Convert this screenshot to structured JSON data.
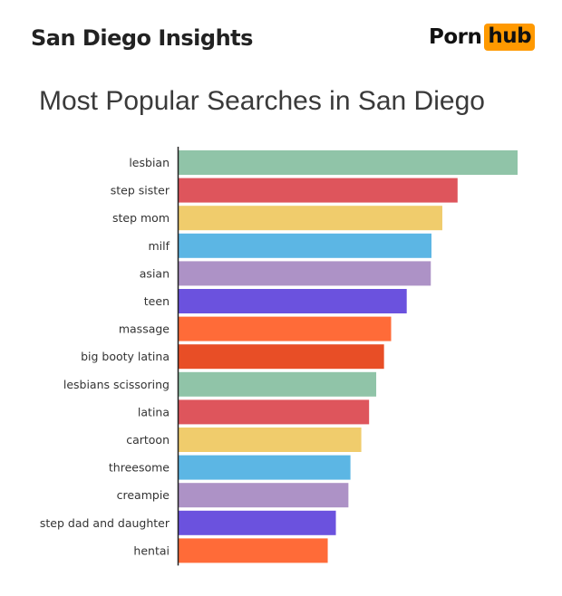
{
  "header": {
    "title": "San Diego Insights",
    "logo_text_left": "Porn",
    "logo_text_right": "hub",
    "logo_accent": "#ff9900"
  },
  "chart_data": {
    "type": "bar",
    "orientation": "horizontal",
    "title": "Most Popular Searches in San Diego",
    "xlabel": "",
    "ylabel": "",
    "grid": false,
    "legend": "none",
    "xlim": [
      0,
      100
    ],
    "categories": [
      "lesbian",
      "step sister",
      "step mom",
      "milf",
      "asian",
      "teen",
      "massage",
      "big booty latina",
      "lesbians scissoring",
      "latina",
      "cartoon",
      "threesome",
      "creampie",
      "step dad and daughter",
      "hentai"
    ],
    "values": [
      100,
      82.3,
      77.8,
      74.6,
      74.4,
      67.3,
      62.7,
      60.6,
      58.3,
      56.2,
      53.9,
      50.7,
      50.1,
      46.4,
      44.0
    ],
    "colors": [
      "#90c4a8",
      "#de555c",
      "#f0cc6c",
      "#5cb6e4",
      "#ad92c6",
      "#6b52de",
      "#ff6b38",
      "#e84e26",
      "#90c4a8",
      "#de555c",
      "#f0cc6c",
      "#5cb6e4",
      "#ad92c6",
      "#6b52de",
      "#ff6b38"
    ]
  }
}
